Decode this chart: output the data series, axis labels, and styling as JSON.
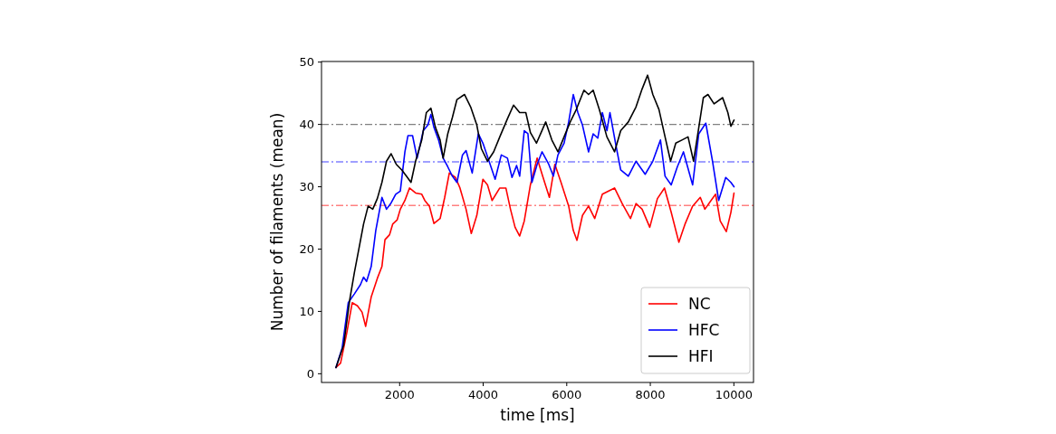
{
  "chart_data": {
    "type": "line",
    "xlabel": "time [ms]",
    "ylabel": "Number of filaments (mean)",
    "xlim": [
      130,
      10470
    ],
    "ylim": [
      -1.4,
      50.1
    ],
    "xticks": [
      2000,
      4000,
      6000,
      8000,
      10000
    ],
    "yticks": [
      0,
      10,
      20,
      30,
      40,
      50
    ],
    "legend": "bottom right",
    "grid": false,
    "series": [
      {
        "name": "NC",
        "color": "#ff0000",
        "x": [
          476,
          586,
          733,
          865,
          990,
          1100,
          1187,
          1319,
          1466,
          1576,
          1649,
          1759,
          1833,
          1942,
          2016,
          2126,
          2236,
          2382,
          2529,
          2602,
          2712,
          2822,
          2969,
          3079,
          3189,
          3335,
          3444,
          3590,
          3715,
          3847,
          3993,
          4103,
          4213,
          4397,
          4543,
          4653,
          4763,
          4873,
          4983,
          5130,
          5291,
          5423,
          5584,
          5716,
          5863,
          6046,
          6156,
          6244,
          6376,
          6522,
          6669,
          6852,
          7144,
          7327,
          7525,
          7657,
          7804,
          7987,
          8170,
          8339,
          8500,
          8683,
          8830,
          9013,
          9196,
          9306,
          9453,
          9563,
          9673,
          9819,
          9929,
          10003
        ],
        "values": [
          1.0,
          1.7,
          6.5,
          11.4,
          10.9,
          9.9,
          7.6,
          12.3,
          15.3,
          17.2,
          21.5,
          22.3,
          24.0,
          24.7,
          26.4,
          27.8,
          29.8,
          29.0,
          28.8,
          27.8,
          26.9,
          24.1,
          24.9,
          28.3,
          32.2,
          31.5,
          29.8,
          26.4,
          22.5,
          25.4,
          31.2,
          30.3,
          27.8,
          29.8,
          29.8,
          26.4,
          23.5,
          22.1,
          24.5,
          30.3,
          34.6,
          31.7,
          28.3,
          33.6,
          30.7,
          26.9,
          23.0,
          21.4,
          25.4,
          26.9,
          24.9,
          28.8,
          29.8,
          27.3,
          24.9,
          27.3,
          26.4,
          23.5,
          28.1,
          29.8,
          25.9,
          21.1,
          24.0,
          26.9,
          28.3,
          26.4,
          27.8,
          28.8,
          24.5,
          22.8,
          25.9,
          29.0
        ]
      },
      {
        "name": "HFC",
        "color": "#0000ff",
        "x": [
          476,
          623,
          770,
          916,
          1063,
          1136,
          1209,
          1319,
          1429,
          1576,
          1686,
          1796,
          1906,
          2016,
          2126,
          2199,
          2309,
          2419,
          2566,
          2676,
          2749,
          2822,
          2932,
          3042,
          3152,
          3262,
          3372,
          3504,
          3590,
          3737,
          3883,
          3993,
          4140,
          4286,
          4433,
          4580,
          4690,
          4800,
          4873,
          4983,
          5071,
          5166,
          5291,
          5408,
          5569,
          5679,
          5789,
          5936,
          6046,
          6156,
          6266,
          6376,
          6522,
          6632,
          6742,
          6852,
          6962,
          7034,
          7181,
          7291,
          7474,
          7657,
          7877,
          8060,
          8243,
          8353,
          8500,
          8647,
          8793,
          9013,
          9160,
          9328,
          9489,
          9636,
          9805,
          9929,
          10003
        ],
        "values": [
          1.0,
          4.1,
          11.4,
          12.8,
          14.3,
          15.5,
          14.8,
          17.2,
          23.0,
          28.3,
          26.4,
          27.4,
          28.8,
          29.3,
          35.6,
          38.2,
          38.2,
          34.6,
          39.0,
          39.9,
          41.6,
          39.5,
          37.5,
          34.6,
          33.2,
          31.7,
          30.7,
          35.1,
          35.8,
          32.2,
          38.5,
          37.0,
          34.1,
          31.2,
          35.1,
          34.6,
          31.5,
          33.4,
          31.7,
          39.0,
          38.5,
          30.7,
          33.6,
          35.6,
          33.6,
          31.7,
          35.1,
          37.0,
          40.4,
          44.8,
          41.9,
          39.9,
          35.6,
          38.5,
          37.8,
          41.9,
          39.0,
          41.9,
          36.5,
          32.7,
          31.7,
          34.1,
          32.0,
          34.1,
          37.5,
          31.7,
          30.3,
          33.2,
          35.6,
          30.3,
          38.5,
          40.2,
          34.1,
          27.8,
          31.5,
          30.7,
          30.0
        ]
      },
      {
        "name": "HFI",
        "color": "#000000",
        "x": [
          476,
          660,
          806,
          916,
          1026,
          1136,
          1246,
          1356,
          1466,
          1576,
          1686,
          1796,
          1920,
          2052,
          2162,
          2272,
          2382,
          2529,
          2639,
          2749,
          2859,
          2969,
          3042,
          3152,
          3262,
          3372,
          3554,
          3700,
          3847,
          3957,
          4103,
          4250,
          4397,
          4580,
          4726,
          4873,
          5020,
          5130,
          5276,
          5386,
          5496,
          5643,
          5789,
          5936,
          6083,
          6229,
          6412,
          6522,
          6632,
          6779,
          6961,
          7144,
          7291,
          7474,
          7657,
          7804,
          7935,
          8060,
          8207,
          8353,
          8485,
          8610,
          8757,
          8903,
          9035,
          9160,
          9270,
          9380,
          9526,
          9731,
          9856,
          9929,
          10003
        ],
        "values": [
          1.0,
          4.6,
          11.9,
          16.2,
          20.1,
          24.0,
          26.9,
          26.4,
          28.1,
          30.7,
          34.1,
          35.3,
          33.6,
          32.7,
          31.7,
          30.7,
          34.1,
          37.5,
          41.9,
          42.6,
          39.5,
          37.5,
          34.6,
          38.5,
          41.1,
          44.0,
          44.8,
          42.8,
          39.9,
          36.1,
          34.1,
          35.6,
          38.0,
          40.9,
          43.1,
          41.9,
          41.9,
          38.7,
          37.0,
          38.7,
          40.4,
          37.5,
          35.6,
          38.0,
          40.4,
          42.4,
          45.5,
          44.8,
          45.5,
          42.4,
          38.0,
          35.6,
          39.0,
          40.4,
          42.8,
          45.7,
          47.9,
          44.8,
          42.4,
          38.0,
          34.1,
          37.0,
          37.5,
          38.0,
          34.1,
          39.5,
          44.3,
          44.8,
          43.3,
          44.3,
          41.9,
          39.7,
          40.7
        ]
      }
    ],
    "ref_lines": [
      {
        "axis": "y",
        "value": 40,
        "color": "#808080",
        "line_style": "dashdot"
      },
      {
        "axis": "y",
        "value": 34,
        "color": "#8080ff",
        "line_style": "dashdot"
      },
      {
        "axis": "y",
        "value": 27,
        "color": "#ff8080",
        "line_style": "dashdot"
      }
    ]
  }
}
